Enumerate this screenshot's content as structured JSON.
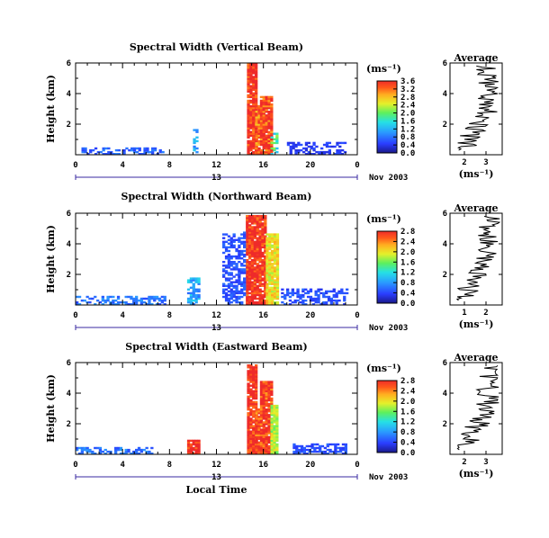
{
  "chart_data": [
    {
      "type": "heatmap",
      "title": "Spectral Width (Vertical Beam)",
      "ylabel": "Height (km)",
      "xlabel": "",
      "x_ticks": [
        "0",
        "4",
        "8",
        "12",
        "16",
        "20",
        "0"
      ],
      "y_ticks": [
        "2",
        "4",
        "6"
      ],
      "xlim": [
        0,
        24
      ],
      "ylim": [
        0,
        6
      ],
      "date_label": "13",
      "month_year": "Nov 2003",
      "colorbar": {
        "unit": "(ms⁻¹)",
        "ticks": [
          "0.0",
          "0.4",
          "0.8",
          "1.2",
          "1.6",
          "2.0",
          "2.4",
          "2.8",
          "3.2",
          "3.6"
        ],
        "max": 3.6
      },
      "average": {
        "title": "Average",
        "xlabel": "(ms⁻¹)",
        "x_ticks": [
          "2",
          "3"
        ],
        "y_ticks": [
          "2",
          "4",
          "6"
        ]
      },
      "regions": [
        {
          "hours": [
            14.6,
            15.3
          ],
          "km": [
            0.0,
            5.9
          ],
          "value": 3.6
        },
        {
          "hours": [
            15.3,
            15.7
          ],
          "km": [
            0.0,
            3.2
          ],
          "value": 3.2
        },
        {
          "hours": [
            15.7,
            16.6
          ],
          "km": [
            0.0,
            3.8
          ],
          "value": 3.4
        },
        {
          "hours": [
            16.6,
            17.1
          ],
          "km": [
            0.0,
            1.5
          ],
          "value": 2.0
        },
        {
          "hours": [
            10.0,
            10.4
          ],
          "km": [
            0.0,
            1.8
          ],
          "value": 1.2
        },
        {
          "hours": [
            0.5,
            7.5
          ],
          "km": [
            0.0,
            0.4
          ],
          "value": 0.8
        },
        {
          "hours": [
            18.0,
            23.0
          ],
          "km": [
            0.0,
            0.8
          ],
          "value": 0.5
        }
      ]
    },
    {
      "type": "heatmap",
      "title": "Spectral Width (Northward Beam)",
      "ylabel": "Height (km)",
      "xlabel": "",
      "x_ticks": [
        "0",
        "4",
        "8",
        "12",
        "16",
        "20",
        "0"
      ],
      "y_ticks": [
        "2",
        "4",
        "6"
      ],
      "xlim": [
        0,
        24
      ],
      "ylim": [
        0,
        6
      ],
      "date_label": "13",
      "month_year": "Nov 2003",
      "colorbar": {
        "unit": "(ms⁻¹)",
        "ticks": [
          "0.0",
          "0.4",
          "0.8",
          "1.2",
          "1.6",
          "2.0",
          "2.4",
          "2.8"
        ],
        "max": 2.8
      },
      "average": {
        "title": "Average",
        "xlabel": "(ms⁻¹)",
        "x_ticks": [
          "1",
          "2"
        ],
        "y_ticks": [
          "2",
          "4",
          "6"
        ]
      },
      "regions": [
        {
          "hours": [
            14.5,
            16.2
          ],
          "km": [
            0.0,
            5.8
          ],
          "value": 2.8
        },
        {
          "hours": [
            16.2,
            17.2
          ],
          "km": [
            0.0,
            4.6
          ],
          "value": 2.0
        },
        {
          "hours": [
            12.5,
            14.4
          ],
          "km": [
            0.0,
            4.8
          ],
          "value": 0.5
        },
        {
          "hours": [
            9.5,
            10.6
          ],
          "km": [
            0.0,
            1.7
          ],
          "value": 1.0
        },
        {
          "hours": [
            0.0,
            7.5
          ],
          "km": [
            0.0,
            0.5
          ],
          "value": 0.7
        },
        {
          "hours": [
            17.5,
            23.0
          ],
          "km": [
            0.0,
            1.0
          ],
          "value": 0.5
        }
      ]
    },
    {
      "type": "heatmap",
      "title": "Spectral Width (Eastward Beam)",
      "ylabel": "Height (km)",
      "xlabel": "Local Time",
      "x_ticks": [
        "0",
        "4",
        "8",
        "12",
        "16",
        "20",
        "0"
      ],
      "y_ticks": [
        "2",
        "4",
        "6"
      ],
      "xlim": [
        0,
        24
      ],
      "ylim": [
        0,
        6
      ],
      "date_label": "13",
      "month_year": "Nov 2003",
      "colorbar": {
        "unit": "(ms⁻¹)",
        "ticks": [
          "0.0",
          "0.4",
          "0.8",
          "1.2",
          "1.6",
          "2.0",
          "2.4",
          "2.8"
        ],
        "max": 2.8
      },
      "average": {
        "title": "Average",
        "xlabel": "(ms⁻¹)",
        "x_ticks": [
          "2",
          "3"
        ],
        "y_ticks": [
          "2",
          "4",
          "6"
        ]
      },
      "regions": [
        {
          "hours": [
            14.6,
            15.3
          ],
          "km": [
            0.0,
            5.8
          ],
          "value": 2.8
        },
        {
          "hours": [
            15.3,
            15.7
          ],
          "km": [
            0.0,
            3.0
          ],
          "value": 2.6
        },
        {
          "hours": [
            15.7,
            16.6
          ],
          "km": [
            0.0,
            4.8
          ],
          "value": 2.7
        },
        {
          "hours": [
            16.6,
            17.2
          ],
          "km": [
            0.0,
            3.2
          ],
          "value": 1.8
        },
        {
          "hours": [
            9.5,
            10.4
          ],
          "km": [
            0.0,
            0.9
          ],
          "value": 2.8
        },
        {
          "hours": [
            0.0,
            6.5
          ],
          "km": [
            0.0,
            0.4
          ],
          "value": 0.7
        },
        {
          "hours": [
            18.5,
            23.0
          ],
          "km": [
            0.0,
            0.7
          ],
          "value": 0.5
        }
      ]
    }
  ]
}
